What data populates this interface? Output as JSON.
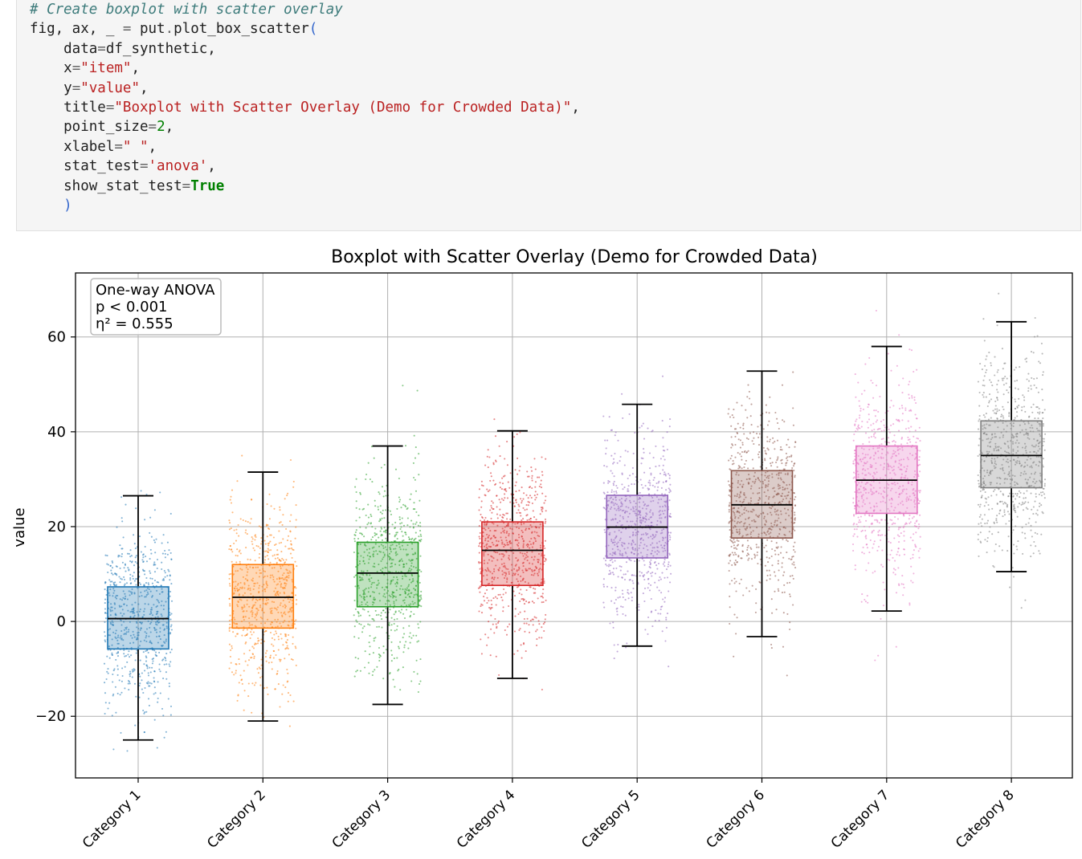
{
  "code_cell": {
    "lines": [
      "# Create boxplot with scatter overlay",
      "fig, ax, _ = put.plot_box_scatter(",
      "    data=df_synthetic,",
      "    x=\"item\",",
      "    y=\"value\",",
      "    title=\"Boxplot with Scatter Overlay (Demo for Crowded Data)\",",
      "    point_size=2,",
      "    xlabel=\" \",",
      "    stat_test='anova',",
      "    show_stat_test=True",
      "    )"
    ]
  },
  "chart_data": {
    "type": "boxplot-scatter",
    "title": "Boxplot with Scatter Overlay (Demo for Crowded Data)",
    "xlabel": " ",
    "ylabel": "value",
    "ylim": [
      -33,
      73.5
    ],
    "yticks": [
      -20,
      0,
      20,
      40,
      60
    ],
    "ytick_labels": [
      "−20",
      "0",
      "20",
      "40",
      "60"
    ],
    "grid": true,
    "stat_box": {
      "test": "One-way ANOVA",
      "p_text": "p < 0.001",
      "eta_text": "η² = 0.555",
      "placement": "top-left"
    },
    "categories": [
      "Category 1",
      "Category 2",
      "Category 3",
      "Category 4",
      "Category 5",
      "Category 6",
      "Category 7",
      "Category 8"
    ],
    "colors": [
      "#1f77b4",
      "#ff7f0e",
      "#2ca02c",
      "#d62728",
      "#9467bd",
      "#8c564b",
      "#e377c2",
      "#7f7f7f"
    ],
    "boxes": [
      {
        "category": "Category 1",
        "whisker_low": -25,
        "q1": -5.8,
        "median": 0.6,
        "q3": 7.3,
        "whisker_high": 26.5
      },
      {
        "category": "Category 2",
        "whisker_low": -21,
        "q1": -1.4,
        "median": 5.1,
        "q3": 12,
        "whisker_high": 31.5
      },
      {
        "category": "Category 3",
        "whisker_low": -17.5,
        "q1": 3.1,
        "median": 10.2,
        "q3": 16.7,
        "whisker_high": 37
      },
      {
        "category": "Category 4",
        "whisker_low": -12,
        "q1": 7.6,
        "median": 15,
        "q3": 21,
        "whisker_high": 40.2
      },
      {
        "category": "Category 5",
        "whisker_low": -5.2,
        "q1": 13.4,
        "median": 19.9,
        "q3": 26.6,
        "whisker_high": 45.8
      },
      {
        "category": "Category 6",
        "whisker_low": -3.2,
        "q1": 17.6,
        "median": 24.6,
        "q3": 31.8,
        "whisker_high": 52.8
      },
      {
        "category": "Category 7",
        "whisker_low": 2.2,
        "q1": 22.8,
        "median": 29.8,
        "q3": 37,
        "whisker_high": 58
      },
      {
        "category": "Category 8",
        "whisker_low": 10.5,
        "q1": 28.2,
        "median": 35,
        "q3": 42.3,
        "whisker_high": 63.2
      }
    ],
    "scatter": {
      "points_per_category": 700,
      "jitter": "uniform",
      "point_size": 2
    }
  }
}
